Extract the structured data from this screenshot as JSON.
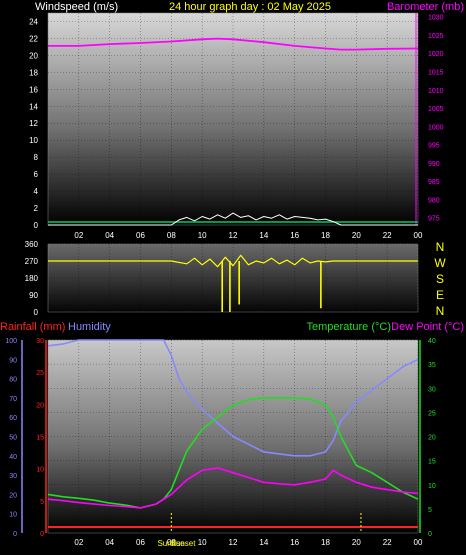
{
  "header": {
    "left_label": "Windspeed (m/s)",
    "center_label": "24 hour graph day : 02 May 2025",
    "right_label": "Barometer (mb)"
  },
  "colors": {
    "wind": "#ffffff",
    "gust": "#ffffff",
    "wind_base": "#00cc66",
    "barometer": "#ff00ff",
    "direction": "#ffff00",
    "rain": "#ff2222",
    "humidity": "#8888ff",
    "temperature": "#22dd22",
    "dewpoint": "#ff00ff",
    "title": "#ffff00"
  },
  "direction_labels": [
    "N",
    "W",
    "S",
    "E",
    "N"
  ],
  "sun_labels": {
    "sunrise": "Sunrise",
    "sunset": "Sunset"
  },
  "chart_data": [
    {
      "type": "line",
      "title": "24 hour graph day : 02 May 2025",
      "xlabel": "",
      "ylabel_left": "Windspeed (m/s)",
      "ylabel_right": "Barometer (mb)",
      "x_ticks": [
        "02",
        "04",
        "06",
        "08",
        "10",
        "12",
        "14",
        "16",
        "18",
        "20",
        "22",
        "00"
      ],
      "ylim_left": [
        0,
        25
      ],
      "yticks_left": [
        0,
        2,
        4,
        6,
        8,
        10,
        12,
        14,
        16,
        18,
        20,
        22,
        24
      ],
      "ylim_right": [
        973,
        1031
      ],
      "yticks_right": [
        975,
        980,
        985,
        990,
        995,
        1000,
        1005,
        1010,
        1015,
        1020,
        1025,
        1030
      ],
      "series": [
        {
          "name": "Barometer (mb)",
          "axis": "right",
          "x": [
            0,
            2,
            4,
            6,
            8,
            10,
            11,
            12,
            14,
            16,
            18,
            19,
            20,
            22,
            24
          ],
          "values": [
            1022,
            1022,
            1022.5,
            1022.8,
            1023.2,
            1023.8,
            1024,
            1023.8,
            1023,
            1022,
            1021.3,
            1021,
            1021,
            1021.2,
            1021.3
          ]
        },
        {
          "name": "Windspeed (m/s)",
          "axis": "left",
          "x": [
            0,
            8,
            8.5,
            9,
            9.5,
            10,
            10.5,
            11,
            11.5,
            12,
            12.5,
            13,
            13.5,
            14,
            14.5,
            15,
            15.5,
            16,
            16.5,
            17,
            17.5,
            18,
            18.5,
            19,
            24
          ],
          "values": [
            0,
            0,
            0.6,
            0.9,
            0.5,
            1.0,
            0.7,
            1.2,
            0.8,
            1.4,
            0.9,
            1.1,
            0.6,
            1.0,
            0.8,
            1.2,
            0.7,
            1.0,
            0.9,
            0.8,
            0.6,
            0.7,
            0.4,
            0,
            0
          ]
        }
      ],
      "grid": true
    },
    {
      "type": "scatter",
      "title": "",
      "ylabel_left": "",
      "yticks_left": [
        0,
        90,
        180,
        270,
        360
      ],
      "ylim_left": [
        0,
        360
      ],
      "series": [
        {
          "name": "Wind direction",
          "x": [
            0,
            8,
            9,
            9.5,
            10,
            10.5,
            11,
            11.5,
            12,
            12.5,
            13,
            13.5,
            14,
            14.5,
            15,
            15.5,
            16,
            16.5,
            17,
            17.5,
            18,
            18.5,
            24
          ],
          "values": [
            270,
            270,
            255,
            285,
            250,
            280,
            240,
            290,
            245,
            300,
            250,
            270,
            260,
            285,
            255,
            275,
            250,
            285,
            260,
            270,
            265,
            270,
            270
          ]
        },
        {
          "name": "Wind direction spikes",
          "x": [
            11.3,
            11.8,
            12.4,
            17.7
          ],
          "values": [
            0,
            0,
            40,
            20
          ]
        }
      ],
      "grid": true
    },
    {
      "type": "line",
      "title": "",
      "ylabel_left": "Rainfall (mm)",
      "ylabel_left2": "Humidity",
      "ylabel_right": "Temperature (°C)",
      "ylabel_right2": "Dew Point (°C)",
      "x_ticks": [
        "02",
        "04",
        "06",
        "08",
        "10",
        "12",
        "14",
        "16",
        "18",
        "20",
        "22",
        "00"
      ],
      "ylim_humidity": [
        0,
        100
      ],
      "yticks_humidity": [
        0,
        10,
        20,
        30,
        40,
        50,
        60,
        70,
        80,
        90,
        100
      ],
      "ylim_rain": [
        0,
        30
      ],
      "yticks_rain": [
        0,
        5,
        10,
        15,
        20,
        25,
        30
      ],
      "ylim_temp": [
        0,
        40
      ],
      "yticks_temp": [
        0,
        5,
        10,
        15,
        20,
        25,
        30,
        35,
        40
      ],
      "series": [
        {
          "name": "Humidity",
          "axis": "humidity",
          "x": [
            0,
            1,
            2,
            4,
            6,
            7.5,
            8,
            8.5,
            9,
            10,
            11,
            12,
            13,
            14,
            15,
            16,
            17,
            18,
            18.5,
            19,
            20,
            21,
            22,
            23,
            24
          ],
          "values": [
            97,
            98,
            100,
            100,
            100,
            100,
            92,
            80,
            73,
            64,
            57,
            50,
            46,
            42,
            41,
            40,
            40,
            42,
            48,
            58,
            68,
            74,
            80,
            86,
            90
          ]
        },
        {
          "name": "Temperature (°C)",
          "axis": "temp",
          "x": [
            0,
            1,
            2,
            3,
            4,
            5,
            6,
            7,
            7.5,
            8,
            8.5,
            9,
            10,
            11,
            12,
            13,
            14,
            15,
            16,
            17,
            18,
            18.5,
            19,
            19.5,
            20,
            21,
            22,
            23,
            24
          ],
          "values": [
            8,
            7.5,
            7.2,
            6.8,
            6.2,
            5.8,
            5.2,
            6,
            7,
            9,
            13,
            17,
            21.5,
            24,
            26.5,
            27.6,
            28,
            28,
            28,
            27.8,
            26.5,
            24,
            20,
            17,
            14,
            12.5,
            10.5,
            8.5,
            7
          ]
        },
        {
          "name": "Dew Point (°C)",
          "axis": "temp",
          "x": [
            0,
            1,
            2,
            3,
            4,
            5,
            6,
            7,
            8,
            9,
            10,
            11,
            12,
            13,
            14,
            15,
            16,
            17,
            18,
            18.5,
            19,
            20,
            21,
            22,
            23,
            24
          ],
          "values": [
            7,
            6.7,
            6.3,
            6,
            5.7,
            5.5,
            5.2,
            6,
            8,
            11,
            13,
            13.5,
            12.5,
            11.5,
            10.5,
            10.2,
            10,
            10.5,
            11.2,
            13,
            12,
            10.5,
            9.5,
            9,
            8.5,
            8.2
          ]
        },
        {
          "name": "Rainfall (mm)",
          "axis": "rain",
          "x": [
            0,
            24
          ],
          "values": [
            0,
            0
          ]
        }
      ],
      "annotations": [
        {
          "label": "Sunrise",
          "x": 8
        },
        {
          "label": "Sunset",
          "x": 20.3
        }
      ],
      "grid": true
    }
  ]
}
